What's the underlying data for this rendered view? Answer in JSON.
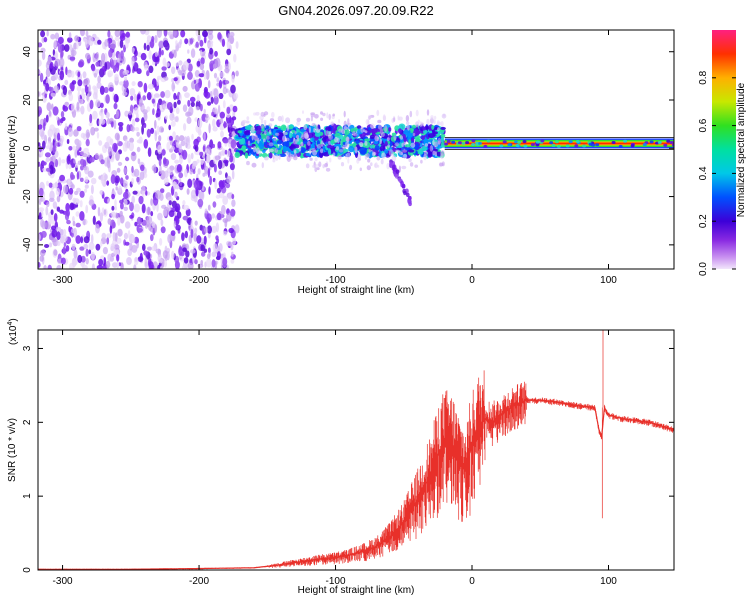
{
  "title": "GN04.2026.097.20.09.R22",
  "colors": {
    "signal_red": "#e8302a",
    "spectro_purple": "#6a12e6",
    "spectro_light": "#c9a6f2",
    "spectro_cyan": "#1fd7d0",
    "axis": "#000000"
  },
  "chart_data": [
    {
      "type": "heatmap",
      "title": "GN04.2026.097.20.09.R22",
      "xlabel": "Height of straight line (km)",
      "ylabel": "Frequency (Hz)",
      "xlim": [
        -318,
        148
      ],
      "ylim": [
        -50,
        49
      ],
      "xticks": [
        -300,
        -200,
        -100,
        0,
        100
      ],
      "xtick_labels": [
        "-300",
        "-200",
        "-100",
        "0",
        "100"
      ],
      "yticks": [
        -40,
        -20,
        0,
        20,
        40
      ],
      "ytick_labels": [
        "-40",
        "-20",
        "0",
        "20",
        "40"
      ],
      "colorbar": {
        "label": "Normalized spectral amplitude",
        "range": [
          0,
          1
        ],
        "ticks": [
          0.0,
          0.2,
          0.4,
          0.6,
          0.8
        ],
        "tick_labels": [
          "0.0",
          "0.2",
          "0.4",
          "0.6",
          "0.8"
        ]
      },
      "features": [
        {
          "name": "broadband noise",
          "x_range": [
            -318,
            -172
          ],
          "freq_range": [
            -50,
            49
          ],
          "amplitude": 0.1
        },
        {
          "name": "emerging band",
          "x_range": [
            -172,
            -20
          ],
          "center_freq": 3,
          "spread": 6,
          "amplitude": 0.35
        },
        {
          "name": "diagonal drift",
          "x_range": [
            -60,
            -45
          ],
          "freq_range": [
            -22,
            -5
          ],
          "amplitude": 0.15
        },
        {
          "name": "narrow tone",
          "x_range": [
            -20,
            148
          ],
          "center_freq": 2,
          "spread": 2,
          "amplitude": 0.95
        }
      ]
    },
    {
      "type": "line",
      "xlabel": "Height of straight line (km)",
      "ylabel": "SNR (10 * v/v)",
      "multiplier": "(x10",
      "multiplier_exp": "4",
      "multiplier_close": ")",
      "xlim": [
        -318,
        148
      ],
      "ylim": [
        0,
        3.25
      ],
      "xticks": [
        -300,
        -200,
        -100,
        0,
        100
      ],
      "xtick_labels": [
        "-300",
        "-200",
        "-100",
        "0",
        "100"
      ],
      "yticks": [
        0,
        1,
        2,
        3
      ],
      "ytick_labels": [
        "0",
        "1",
        "2",
        "3"
      ],
      "series": [
        {
          "name": "SNR",
          "x": [
            -318,
            -250,
            -200,
            -160,
            -145,
            -130,
            -115,
            -100,
            -90,
            -80,
            -70,
            -60,
            -50,
            -40,
            -30,
            -25,
            -20,
            -15,
            -10,
            -5,
            0,
            5,
            10,
            15,
            20,
            30,
            40,
            50,
            60,
            70,
            80,
            90,
            93,
            95,
            97,
            100,
            110,
            130,
            148
          ],
          "y": [
            0.01,
            0.01,
            0.02,
            0.03,
            0.06,
            0.1,
            0.14,
            0.17,
            0.2,
            0.25,
            0.32,
            0.45,
            0.65,
            0.95,
            1.3,
            1.55,
            1.75,
            1.7,
            1.5,
            1.35,
            1.7,
            1.95,
            2.05,
            2.0,
            2.08,
            2.22,
            2.3,
            2.3,
            2.28,
            2.25,
            2.22,
            2.2,
            1.9,
            1.8,
            2.2,
            2.1,
            2.05,
            2.0,
            1.9
          ]
        }
      ],
      "annotations": [
        {
          "name": "spike",
          "x": 96,
          "y": 3.25
        },
        {
          "name": "dip",
          "x": 95.5,
          "y": 0.7
        }
      ]
    }
  ]
}
